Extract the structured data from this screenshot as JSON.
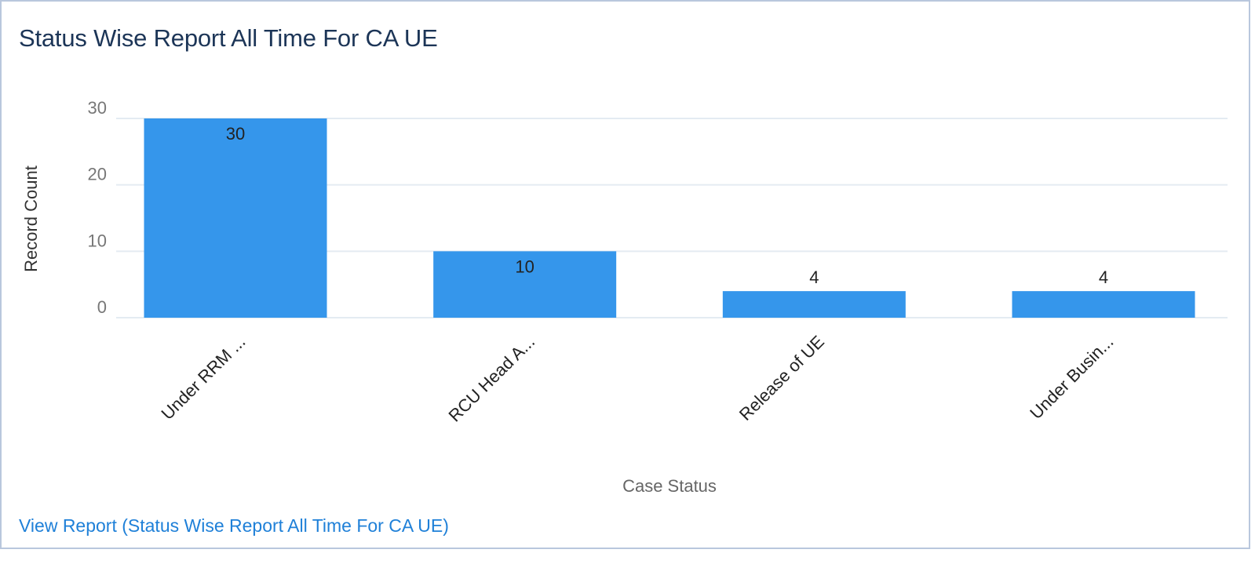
{
  "widget": {
    "title": "Status Wise Report All Time For CA UE",
    "view_report_link": "View Report (Status Wise Report All Time For CA UE)"
  },
  "colors": {
    "bar": "#3596eb",
    "title": "#1c3557",
    "link": "#1f80d8",
    "border": "#b9c7dd"
  },
  "chart_data": {
    "type": "bar",
    "title": "Status Wise Report All Time For CA UE",
    "xlabel": "Case Status",
    "ylabel": "Record Count",
    "categories": [
      "Under RRM ...",
      "RCU Head A...",
      "Release of UE",
      "Under Busin..."
    ],
    "values": [
      30,
      10,
      4,
      4
    ],
    "data_labels": [
      "30",
      "10",
      "4",
      "4"
    ],
    "y_ticks": [
      0,
      10,
      20,
      30
    ],
    "ylim": [
      0,
      30
    ],
    "grid": true,
    "legend": "none"
  }
}
